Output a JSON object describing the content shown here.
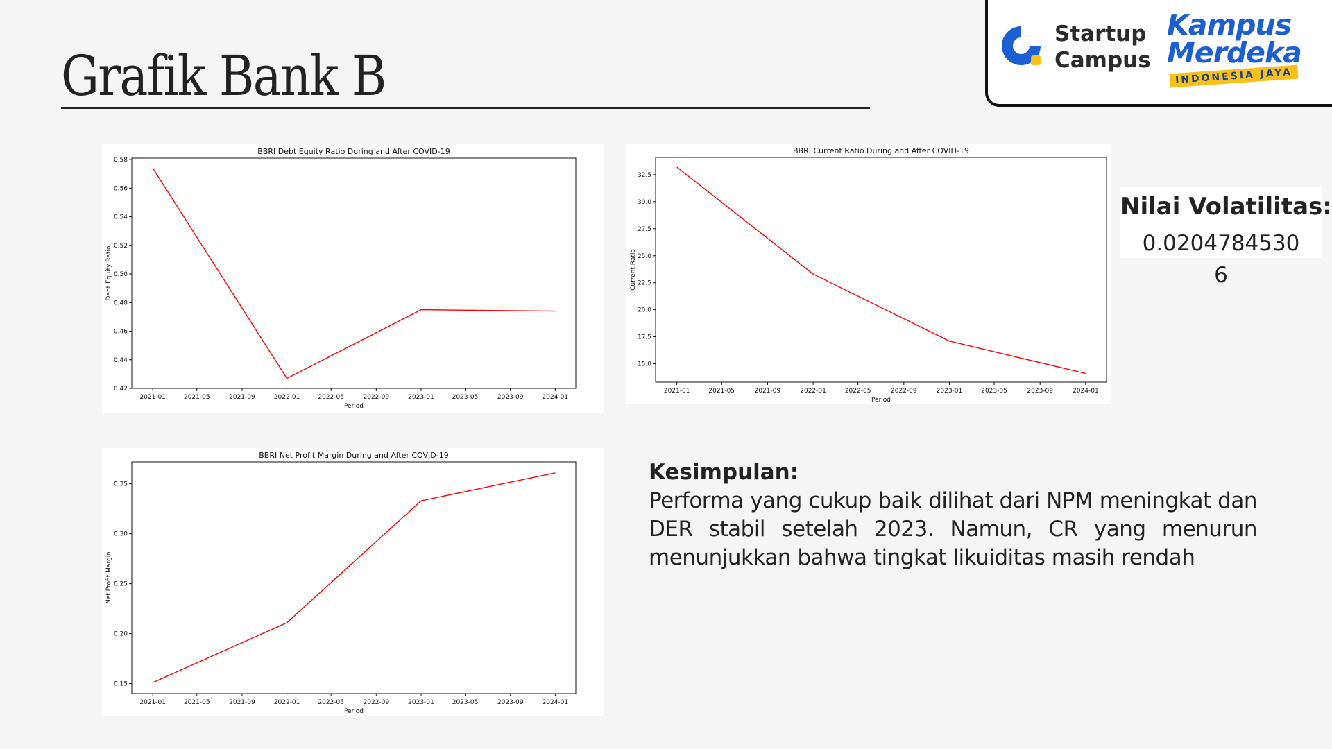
{
  "slide": {
    "title": "Grafik Bank B"
  },
  "logos": {
    "startup_campus": {
      "line1": "Startup",
      "line2": "Campus"
    },
    "kampus_merdeka": {
      "line1": "Kampus",
      "line2": "Merdeka",
      "ribbon": "INDONESIA JAYA"
    }
  },
  "volatility": {
    "label": "Nilai Volatilitas:",
    "value": "0.02047845306"
  },
  "conclusion": {
    "heading": "Kesimpulan:",
    "body": "Performa yang cukup baik dilihat dari NPM meningkat dan DER  stabil setelah 2023. Namun,  CR yang menurun menunjukkan bahwa tingkat likuiditas masih rendah"
  },
  "colors": {
    "line": "#ff0000",
    "accent_blue": "#1c5fd3",
    "accent_yellow": "#f7c11a"
  },
  "chart_data": [
    {
      "id": "der",
      "type": "line",
      "title": "BBRI Debt Equity Ratio During and After COVID-19",
      "xlabel": "Period",
      "ylabel": "Debt Equity Ratio",
      "x": [
        "2021-01",
        "2022-01",
        "2023-01",
        "2024-01"
      ],
      "y": [
        0.574,
        0.427,
        0.475,
        0.474
      ],
      "x_ticks": [
        "2021-01",
        "2021-05",
        "2021-09",
        "2022-01",
        "2022-05",
        "2022-09",
        "2023-01",
        "2023-05",
        "2023-09",
        "2024-01"
      ],
      "y_ticks": [
        "0.42",
        "0.44",
        "0.46",
        "0.48",
        "0.50",
        "0.52",
        "0.54",
        "0.56",
        "0.58"
      ],
      "xlim": [
        "2020-11-05",
        "2024-02-26"
      ],
      "ylim": [
        0.42,
        0.581
      ],
      "grid": false,
      "color": "#ff0000"
    },
    {
      "id": "cr",
      "type": "line",
      "title": "BBRI Current Ratio During and After COVID-19",
      "xlabel": "Period",
      "ylabel": "Current Ratio",
      "x": [
        "2021-01",
        "2022-01",
        "2023-01",
        "2024-01"
      ],
      "y": [
        33.2,
        23.3,
        17.1,
        14.1
      ],
      "x_ticks": [
        "2021-01",
        "2021-05",
        "2021-09",
        "2022-01",
        "2022-05",
        "2022-09",
        "2023-01",
        "2023-05",
        "2023-09",
        "2024-01"
      ],
      "y_ticks": [
        "15.0",
        "17.5",
        "20.0",
        "22.5",
        "25.0",
        "27.5",
        "30.0",
        "32.5"
      ],
      "xlim": [
        "2020-11-05",
        "2024-02-26"
      ],
      "ylim": [
        13.3,
        34.1
      ],
      "grid": false,
      "color": "#ff0000"
    },
    {
      "id": "npm",
      "type": "line",
      "title": "BBRI Net Profit Margin During and After COVID-19",
      "xlabel": "Period",
      "ylabel": "Net Profit Margin",
      "x": [
        "2021-01",
        "2022-01",
        "2023-01",
        "2024-01"
      ],
      "y": [
        0.151,
        0.211,
        0.333,
        0.361
      ],
      "x_ticks": [
        "2021-01",
        "2021-05",
        "2021-09",
        "2022-01",
        "2022-05",
        "2022-09",
        "2023-01",
        "2023-05",
        "2023-09",
        "2024-01"
      ],
      "y_ticks": [
        "0.15",
        "0.20",
        "0.25",
        "0.30",
        "0.35"
      ],
      "xlim": [
        "2020-11-05",
        "2024-02-26"
      ],
      "ylim": [
        0.14,
        0.372
      ],
      "grid": false,
      "color": "#ff0000"
    }
  ]
}
